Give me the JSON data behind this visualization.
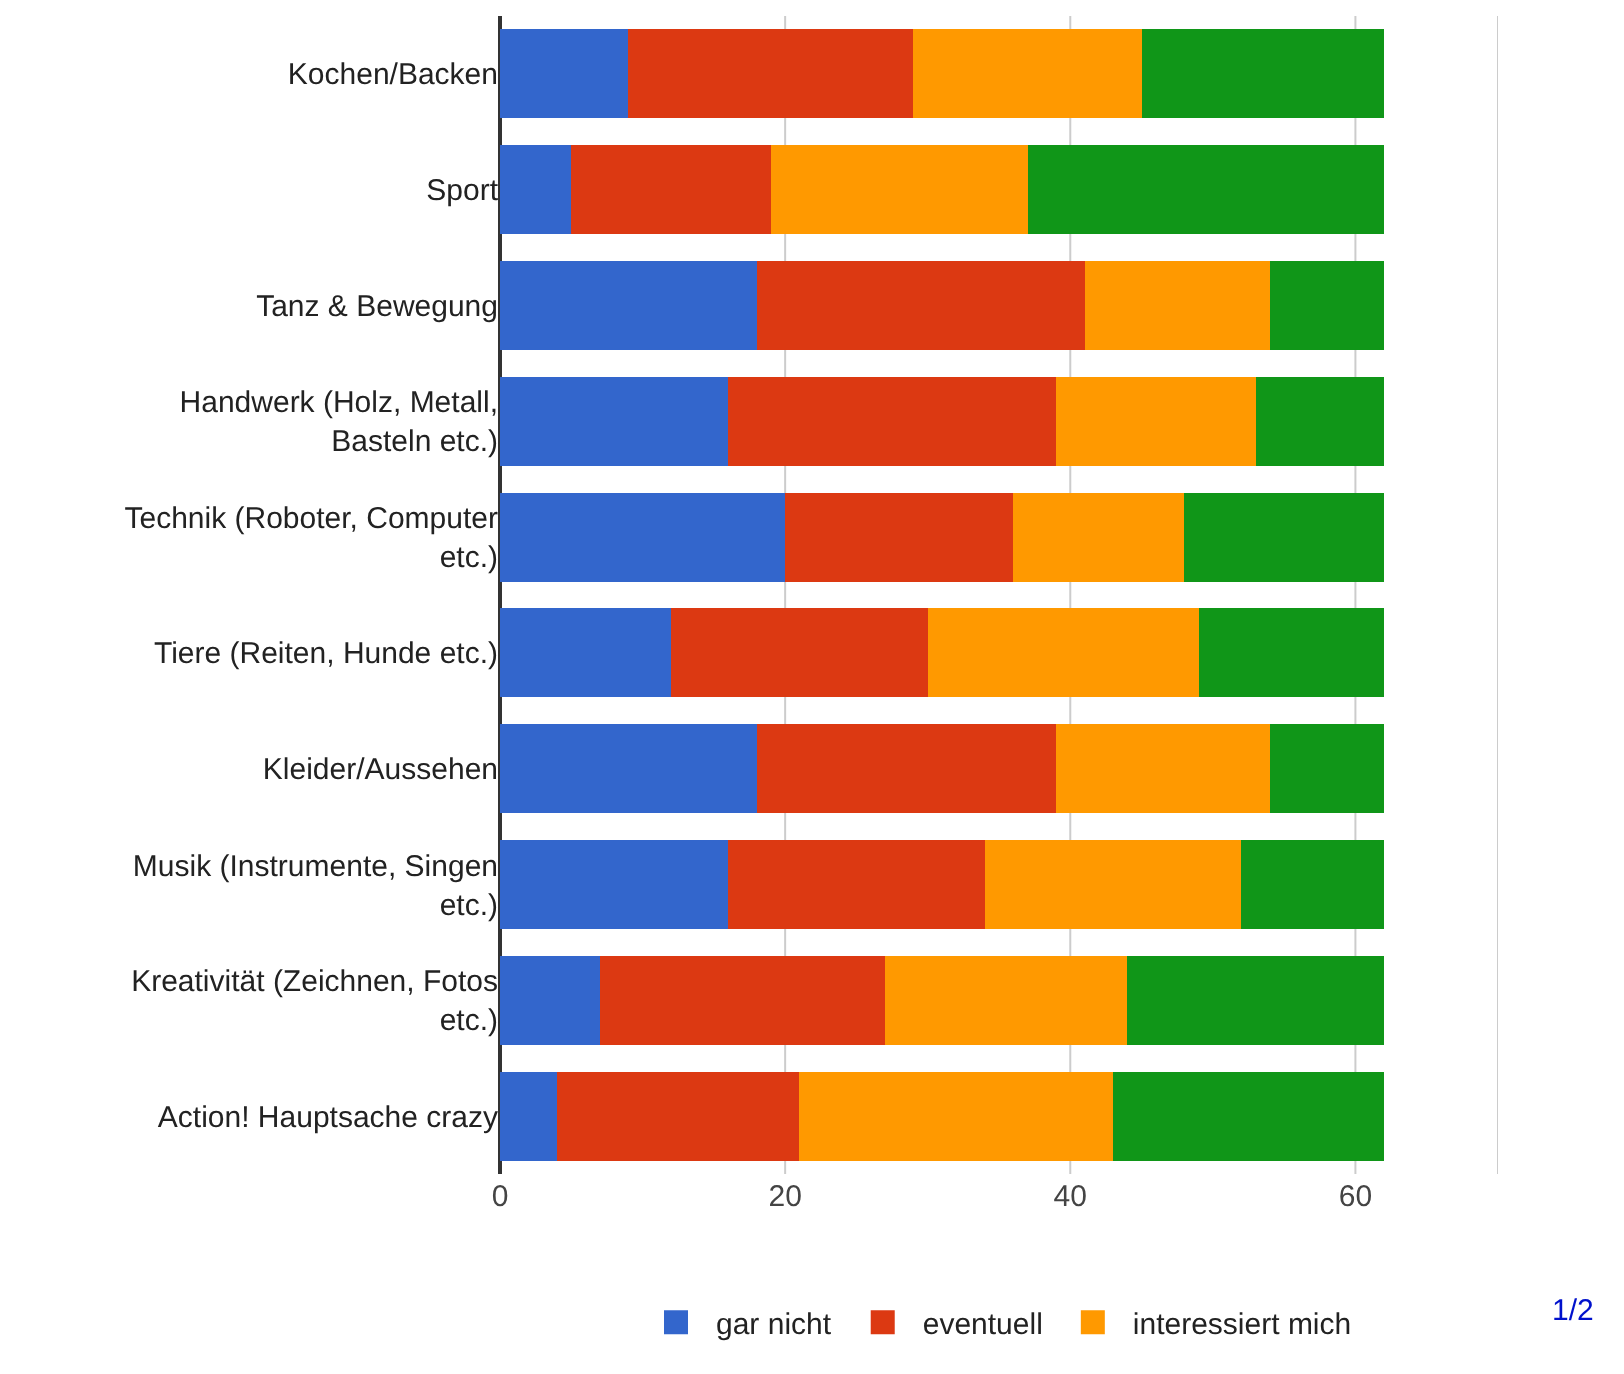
{
  "chart_data": {
    "type": "bar",
    "orientation": "horizontal",
    "stacked": true,
    "categories": [
      "Kochen/Backen",
      "Sport",
      "Tanz & Bewegung",
      "Handwerk (Holz, Metall, Basteln etc.)",
      "Technik (Roboter, Computer etc.)",
      "Tiere (Reiten, Hunde etc.)",
      "Kleider/Aussehen",
      "Musik (Instrumente, Singen etc.)",
      "Kreativität (Zeichnen, Fotos etc.)",
      "Action! Hauptsache crazy"
    ],
    "series": [
      {
        "name": "gar nicht",
        "color": "#3366cc",
        "values": [
          9,
          5,
          18,
          16,
          20,
          12,
          18,
          16,
          7,
          4
        ]
      },
      {
        "name": "eventuell",
        "color": "#dc3912",
        "values": [
          20,
          14,
          23,
          23,
          16,
          18,
          21,
          18,
          20,
          17
        ]
      },
      {
        "name": "interessiert mich",
        "color": "#ff9900",
        "values": [
          16,
          18,
          13,
          14,
          12,
          19,
          15,
          18,
          17,
          22
        ]
      },
      {
        "color": "#109618",
        "values": [
          17,
          25,
          8,
          9,
          14,
          13,
          8,
          10,
          18,
          19
        ]
      }
    ],
    "xlim": [
      0,
      70
    ],
    "xticks": [
      0,
      20,
      40,
      60,
      {
        "value": 70,
        "label": null
      }
    ],
    "grid": "x",
    "legend": "bottom",
    "annotations": [
      "1/2"
    ]
  }
}
